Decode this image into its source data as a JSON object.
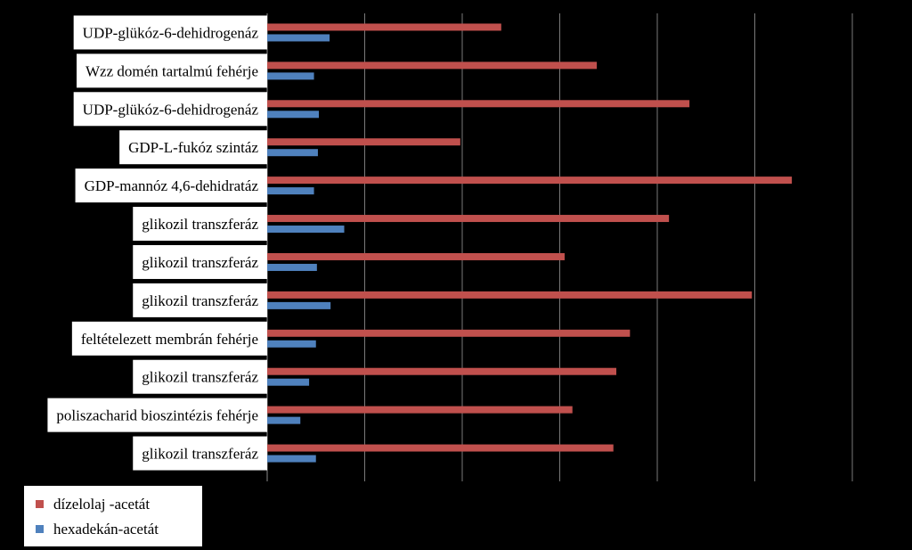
{
  "chart_data": {
    "type": "bar",
    "orientation": "horizontal",
    "categories": [
      "UDP-glükóz-6-dehidrogenáz",
      "Wzz domén tartalmú fehérje",
      "UDP-glükóz-6-dehidrogenáz",
      "GDP-L-fukóz szintáz",
      "GDP-mannóz 4,6-dehidratáz",
      "glikozil  transzferáz",
      "glikozil  transzferáz",
      "glikozil  transzferáz",
      "feltételezett  membrán fehérje",
      "glikozil  transzferáz",
      "poliszacharid bioszintézis fehérje",
      "glikozil  transzferáz"
    ],
    "series": [
      {
        "name": "dízelolaj -acetát",
        "color": "#c0504d",
        "values": [
          2.4,
          3.38,
          4.33,
          1.98,
          5.38,
          4.12,
          3.05,
          4.97,
          3.72,
          3.58,
          3.13,
          3.55
        ]
      },
      {
        "name": "hexadekán-acetát",
        "color": "#4f81bd",
        "values": [
          0.64,
          0.48,
          0.53,
          0.52,
          0.48,
          0.79,
          0.51,
          0.65,
          0.5,
          0.43,
          0.34,
          0.5
        ]
      }
    ],
    "xlim": [
      0,
      6
    ],
    "grid": true,
    "legend": "bottom-left"
  }
}
